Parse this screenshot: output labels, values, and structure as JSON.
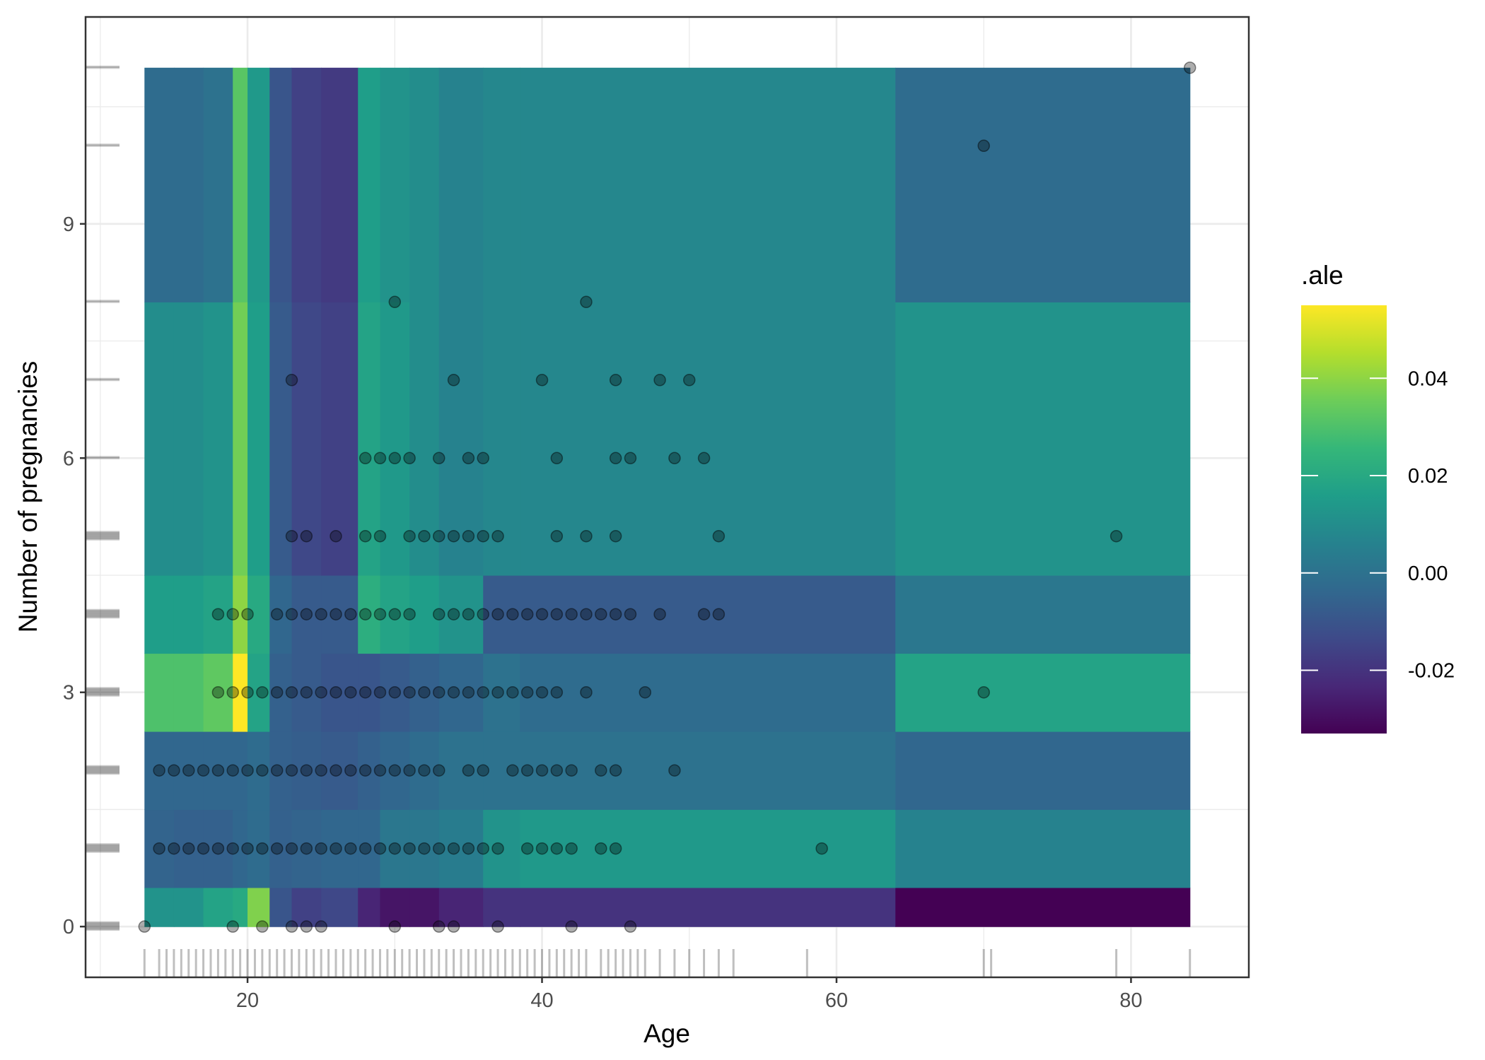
{
  "chart_data": {
    "type": "heatmap",
    "xlabel": "Age",
    "ylabel": "Number of pregnancies",
    "xlim": [
      9,
      88
    ],
    "ylim": [
      -0.65,
      11.65
    ],
    "x_ticks": [
      20,
      40,
      60,
      80
    ],
    "y_ticks": [
      0,
      3,
      6,
      9
    ],
    "grid": true,
    "legend": {
      "title": ".ale",
      "position": "right",
      "range": [
        -0.033,
        0.055
      ],
      "breaks": [
        -0.02,
        0.0,
        0.02,
        0.04
      ],
      "break_labels": [
        "-0.02",
        "0.00",
        "0.02",
        "0.04"
      ],
      "palette": [
        "#440154",
        "#482878",
        "#3E4A89",
        "#31688E",
        "#26828E",
        "#1F9E89",
        "#35B779",
        "#6DCD59",
        "#B4DE2C",
        "#FDE725"
      ]
    },
    "heat_x_breaks": [
      13,
      15,
      17,
      19,
      20,
      21.5,
      23,
      25,
      27.5,
      29,
      31,
      33,
      36,
      38.5,
      64,
      84
    ],
    "heat_y_breaks": [
      0,
      0.5,
      1.5,
      2.5,
      3.5,
      4.5,
      8,
      11
    ],
    "ale_values": [
      [
        0.012,
        0.012,
        0.018,
        0.02,
        0.038,
        -0.01,
        -0.016,
        -0.014,
        -0.024,
        -0.028,
        -0.028,
        -0.024,
        -0.02,
        -0.02,
        -0.033
      ],
      [
        -0.005,
        -0.006,
        -0.006,
        -0.004,
        -0.002,
        -0.006,
        -0.005,
        -0.004,
        -0.004,
        0.002,
        0.002,
        0.004,
        0.012,
        0.014,
        0.006
      ],
      [
        -0.004,
        -0.004,
        -0.004,
        -0.004,
        -0.002,
        -0.006,
        -0.007,
        -0.008,
        -0.006,
        -0.004,
        -0.002,
        0.0,
        0.0,
        0.0,
        -0.004
      ],
      [
        0.03,
        0.03,
        0.033,
        0.055,
        0.018,
        -0.006,
        -0.008,
        -0.01,
        -0.01,
        -0.008,
        -0.006,
        -0.004,
        0.0,
        -0.002,
        0.018
      ],
      [
        0.016,
        0.016,
        0.018,
        0.04,
        0.02,
        -0.004,
        -0.008,
        -0.008,
        0.022,
        0.018,
        0.016,
        0.012,
        -0.008,
        -0.008,
        0.002
      ],
      [
        0.01,
        0.01,
        0.012,
        0.036,
        0.016,
        -0.008,
        -0.014,
        -0.016,
        0.018,
        0.014,
        0.01,
        0.006,
        0.008,
        0.008,
        0.012
      ],
      [
        -0.002,
        -0.002,
        0.0,
        0.032,
        0.014,
        -0.01,
        -0.016,
        -0.018,
        0.016,
        0.012,
        0.01,
        0.006,
        0.008,
        0.008,
        -0.002
      ]
    ],
    "points": [
      [
        13,
        0
      ],
      [
        19,
        0
      ],
      [
        21,
        0
      ],
      [
        23,
        0
      ],
      [
        24,
        0
      ],
      [
        25,
        0
      ],
      [
        30,
        0
      ],
      [
        33,
        0
      ],
      [
        34,
        0
      ],
      [
        37,
        0
      ],
      [
        42,
        0
      ],
      [
        46,
        0
      ],
      [
        14,
        1
      ],
      [
        15,
        1
      ],
      [
        16,
        1
      ],
      [
        17,
        1
      ],
      [
        18,
        1
      ],
      [
        19,
        1
      ],
      [
        20,
        1
      ],
      [
        21,
        1
      ],
      [
        22,
        1
      ],
      [
        23,
        1
      ],
      [
        24,
        1
      ],
      [
        25,
        1
      ],
      [
        26,
        1
      ],
      [
        27,
        1
      ],
      [
        28,
        1
      ],
      [
        29,
        1
      ],
      [
        30,
        1
      ],
      [
        31,
        1
      ],
      [
        32,
        1
      ],
      [
        33,
        1
      ],
      [
        34,
        1
      ],
      [
        35,
        1
      ],
      [
        36,
        1
      ],
      [
        37,
        1
      ],
      [
        39,
        1
      ],
      [
        40,
        1
      ],
      [
        41,
        1
      ],
      [
        42,
        1
      ],
      [
        44,
        1
      ],
      [
        45,
        1
      ],
      [
        59,
        1
      ],
      [
        14,
        2
      ],
      [
        15,
        2
      ],
      [
        16,
        2
      ],
      [
        17,
        2
      ],
      [
        18,
        2
      ],
      [
        19,
        2
      ],
      [
        20,
        2
      ],
      [
        21,
        2
      ],
      [
        22,
        2
      ],
      [
        23,
        2
      ],
      [
        24,
        2
      ],
      [
        25,
        2
      ],
      [
        26,
        2
      ],
      [
        27,
        2
      ],
      [
        28,
        2
      ],
      [
        29,
        2
      ],
      [
        30,
        2
      ],
      [
        31,
        2
      ],
      [
        32,
        2
      ],
      [
        33,
        2
      ],
      [
        35,
        2
      ],
      [
        36,
        2
      ],
      [
        38,
        2
      ],
      [
        39,
        2
      ],
      [
        40,
        2
      ],
      [
        41,
        2
      ],
      [
        42,
        2
      ],
      [
        44,
        2
      ],
      [
        45,
        2
      ],
      [
        49,
        2
      ],
      [
        18,
        3
      ],
      [
        19,
        3
      ],
      [
        20,
        3
      ],
      [
        21,
        3
      ],
      [
        22,
        3
      ],
      [
        23,
        3
      ],
      [
        24,
        3
      ],
      [
        25,
        3
      ],
      [
        26,
        3
      ],
      [
        27,
        3
      ],
      [
        28,
        3
      ],
      [
        29,
        3
      ],
      [
        30,
        3
      ],
      [
        31,
        3
      ],
      [
        32,
        3
      ],
      [
        33,
        3
      ],
      [
        34,
        3
      ],
      [
        35,
        3
      ],
      [
        36,
        3
      ],
      [
        37,
        3
      ],
      [
        38,
        3
      ],
      [
        39,
        3
      ],
      [
        40,
        3
      ],
      [
        41,
        3
      ],
      [
        43,
        3
      ],
      [
        47,
        3
      ],
      [
        70,
        3
      ],
      [
        18,
        4
      ],
      [
        19,
        4
      ],
      [
        20,
        4
      ],
      [
        22,
        4
      ],
      [
        23,
        4
      ],
      [
        24,
        4
      ],
      [
        25,
        4
      ],
      [
        26,
        4
      ],
      [
        27,
        4
      ],
      [
        28,
        4
      ],
      [
        29,
        4
      ],
      [
        30,
        4
      ],
      [
        31,
        4
      ],
      [
        33,
        4
      ],
      [
        34,
        4
      ],
      [
        35,
        4
      ],
      [
        36,
        4
      ],
      [
        37,
        4
      ],
      [
        38,
        4
      ],
      [
        39,
        4
      ],
      [
        40,
        4
      ],
      [
        41,
        4
      ],
      [
        42,
        4
      ],
      [
        43,
        4
      ],
      [
        44,
        4
      ],
      [
        45,
        4
      ],
      [
        46,
        4
      ],
      [
        48,
        4
      ],
      [
        51,
        4
      ],
      [
        52,
        4
      ],
      [
        23,
        5
      ],
      [
        24,
        5
      ],
      [
        26,
        5
      ],
      [
        28,
        5
      ],
      [
        29,
        5
      ],
      [
        31,
        5
      ],
      [
        32,
        5
      ],
      [
        33,
        5
      ],
      [
        34,
        5
      ],
      [
        35,
        5
      ],
      [
        36,
        5
      ],
      [
        37,
        5
      ],
      [
        41,
        5
      ],
      [
        43,
        5
      ],
      [
        45,
        5
      ],
      [
        52,
        5
      ],
      [
        79,
        5
      ],
      [
        28,
        6
      ],
      [
        29,
        6
      ],
      [
        30,
        6
      ],
      [
        31,
        6
      ],
      [
        33,
        6
      ],
      [
        35,
        6
      ],
      [
        36,
        6
      ],
      [
        41,
        6
      ],
      [
        45,
        6
      ],
      [
        46,
        6
      ],
      [
        49,
        6
      ],
      [
        51,
        6
      ],
      [
        23,
        7
      ],
      [
        34,
        7
      ],
      [
        40,
        7
      ],
      [
        45,
        7
      ],
      [
        48,
        7
      ],
      [
        50,
        7
      ],
      [
        30,
        8
      ],
      [
        43,
        8
      ],
      [
        70,
        10
      ],
      [
        84,
        11
      ]
    ],
    "x_rug": [
      13,
      14,
      14.5,
      15,
      15.5,
      16,
      16.5,
      17,
      17.5,
      18,
      18.5,
      19,
      19.5,
      20,
      20.5,
      21,
      21.5,
      22,
      22.5,
      23,
      23.5,
      24,
      24.5,
      25,
      25.5,
      26,
      26.5,
      27,
      27.5,
      28,
      28.5,
      29,
      29.5,
      30,
      30.5,
      31,
      31.5,
      32,
      32.5,
      33,
      33.5,
      34,
      34.5,
      35,
      35.5,
      36,
      36.5,
      37,
      37.5,
      38,
      38.5,
      39,
      39.5,
      40,
      40.5,
      41,
      41.5,
      42,
      42.5,
      43,
      44,
      44.5,
      45,
      45.5,
      46,
      46.5,
      47,
      48,
      49,
      50,
      51,
      52,
      53,
      58,
      70,
      70.5,
      79,
      84
    ],
    "y_rug": [
      0,
      1,
      2,
      3,
      4,
      5,
      6,
      7,
      8,
      10,
      11
    ]
  }
}
